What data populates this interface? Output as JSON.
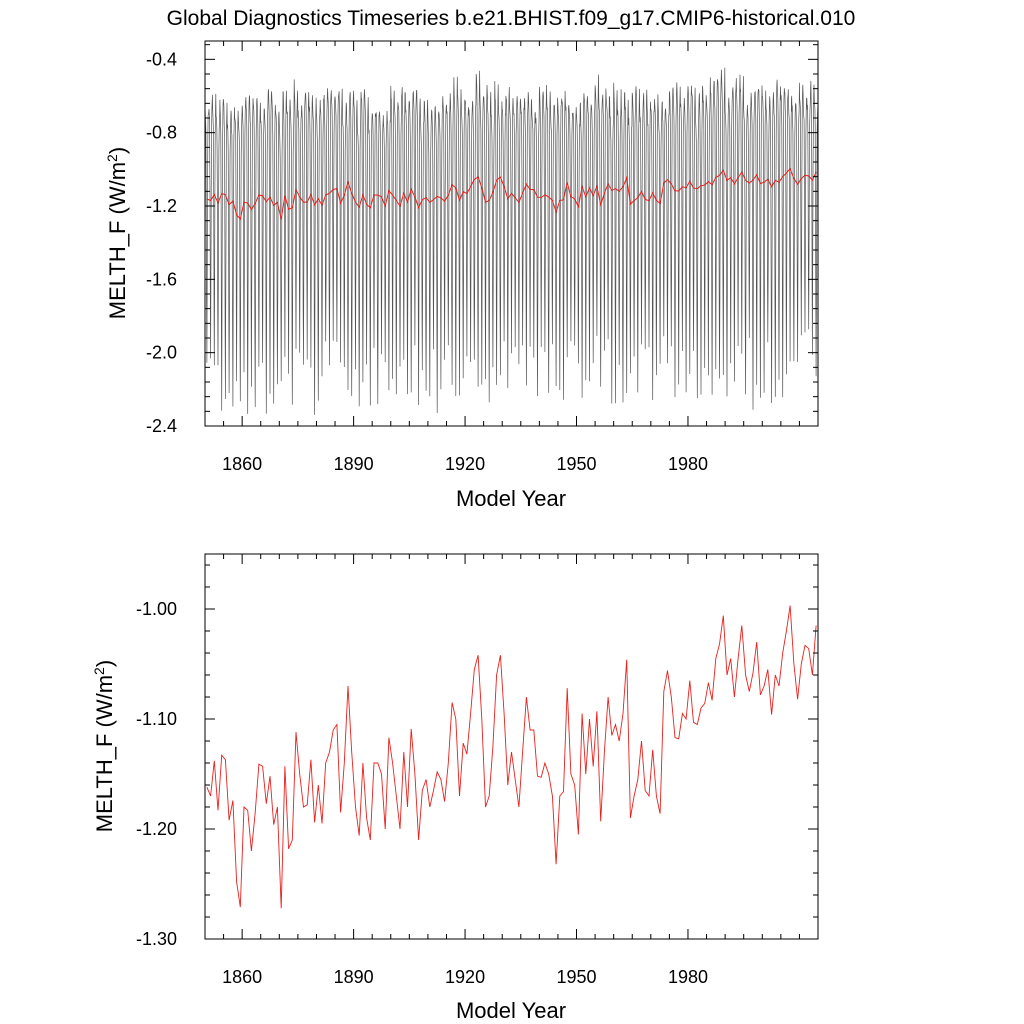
{
  "title": "Global Diagnostics Timeseries b.e21.BHIST.f09_g17.CMIP6-historical.010",
  "chart_data": [
    {
      "type": "line",
      "panel": "monthly",
      "xlabel": "Model Year",
      "ylabel": "MELTH_F (W/m",
      "ylabel_sup": "2",
      "ylabel_close": ")",
      "xlim": [
        1850,
        2015
      ],
      "ylim": [
        -2.4,
        -0.3
      ],
      "xticks": [
        1860,
        1890,
        1920,
        1950,
        1980
      ],
      "xtick_labels": [
        "1860",
        "1890",
        "1920",
        "1950",
        "1980"
      ],
      "yticks": [
        -2.4,
        -2.0,
        -1.6,
        -1.2,
        -0.8,
        -0.4
      ],
      "ytick_labels": [
        "-2.4",
        "-2.0",
        "-1.6",
        "-1.2",
        "-0.8",
        "-0.4"
      ],
      "series": [
        {
          "color": "#555555",
          "description_values": "monthly oscillation, yearly max ~-0.5, yearly min ~-2.0 to -2.4"
        },
        {
          "color": "#e8211d",
          "description_values": "annual mean"
        }
      ]
    },
    {
      "type": "line",
      "panel": "annual",
      "xlabel": "Model Year",
      "ylabel": "MELTH_F (W/m",
      "ylabel_sup": "2",
      "ylabel_close": ")",
      "xlim": [
        1850,
        2015
      ],
      "ylim": [
        -1.3,
        -0.95
      ],
      "xticks": [
        1860,
        1890,
        1920,
        1950,
        1980
      ],
      "xtick_labels": [
        "1860",
        "1890",
        "1920",
        "1950",
        "1980"
      ],
      "yticks": [
        -1.3,
        -1.2,
        -1.1,
        -1.0
      ],
      "ytick_labels": [
        "-1.30",
        "-1.20",
        "-1.10",
        "-1.00"
      ],
      "series": [
        {
          "color": "#e8211d",
          "x_start": 1850,
          "values": [
            -1.162,
            -1.17,
            -1.138,
            -1.183,
            -1.133,
            -1.137,
            -1.192,
            -1.174,
            -1.248,
            -1.271,
            -1.18,
            -1.183,
            -1.22,
            -1.185,
            -1.141,
            -1.143,
            -1.177,
            -1.152,
            -1.196,
            -1.18,
            -1.272,
            -1.143,
            -1.218,
            -1.21,
            -1.112,
            -1.15,
            -1.18,
            -1.178,
            -1.137,
            -1.194,
            -1.16,
            -1.195,
            -1.14,
            -1.13,
            -1.11,
            -1.105,
            -1.185,
            -1.14,
            -1.07,
            -1.13,
            -1.18,
            -1.206,
            -1.14,
            -1.19,
            -1.21,
            -1.14,
            -1.14,
            -1.15,
            -1.2,
            -1.117,
            -1.14,
            -1.17,
            -1.2,
            -1.13,
            -1.18,
            -1.109,
            -1.15,
            -1.21,
            -1.165,
            -1.155,
            -1.18,
            -1.165,
            -1.148,
            -1.155,
            -1.175,
            -1.14,
            -1.085,
            -1.1,
            -1.17,
            -1.122,
            -1.132,
            -1.095,
            -1.055,
            -1.042,
            -1.1,
            -1.18,
            -1.17,
            -1.125,
            -1.06,
            -1.042,
            -1.095,
            -1.16,
            -1.13,
            -1.155,
            -1.18,
            -1.13,
            -1.08,
            -1.11,
            -1.11,
            -1.152,
            -1.153,
            -1.14,
            -1.15,
            -1.17,
            -1.232,
            -1.17,
            -1.166,
            -1.072,
            -1.15,
            -1.16,
            -1.205,
            -1.095,
            -1.15,
            -1.1,
            -1.143,
            -1.093,
            -1.193,
            -1.13,
            -1.08,
            -1.115,
            -1.105,
            -1.12,
            -1.095,
            -1.046,
            -1.19,
            -1.17,
            -1.155,
            -1.12,
            -1.165,
            -1.17,
            -1.128,
            -1.17,
            -1.186,
            -1.075,
            -1.056,
            -1.08,
            -1.117,
            -1.118,
            -1.095,
            -1.1,
            -1.065,
            -1.103,
            -1.105,
            -1.09,
            -1.086,
            -1.067,
            -1.083,
            -1.045,
            -1.032,
            -1.006,
            -1.06,
            -1.045,
            -1.08,
            -1.045,
            -1.015,
            -1.06,
            -1.075,
            -1.058,
            -1.03,
            -1.078,
            -1.07,
            -1.055,
            -1.096,
            -1.06,
            -1.07,
            -1.04,
            -1.02,
            -0.997,
            -1.05,
            -1.082,
            -1.05,
            -1.033,
            -1.036,
            -1.06,
            -1.015
          ]
        }
      ]
    }
  ]
}
